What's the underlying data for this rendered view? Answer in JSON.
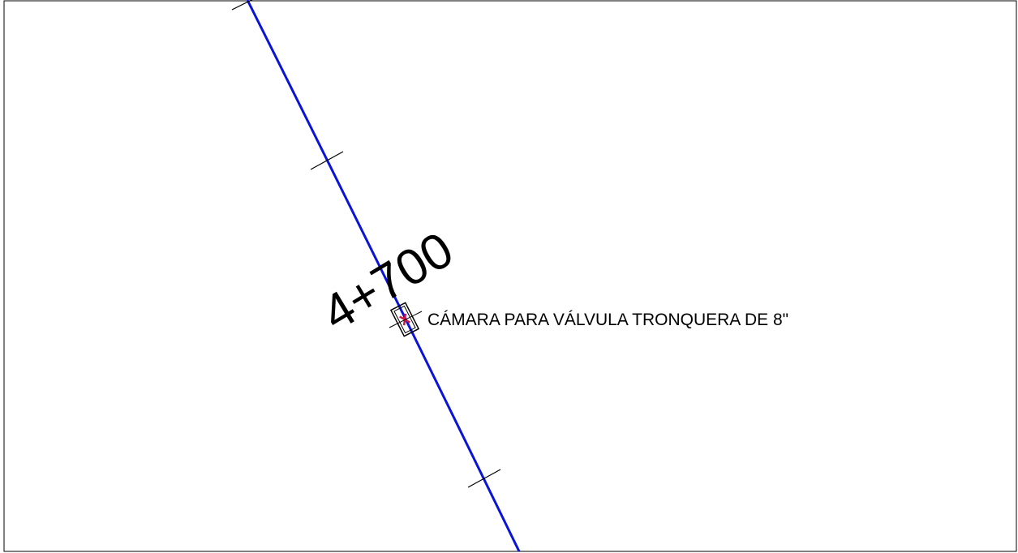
{
  "station_label": "4+700",
  "annotation": "CÁMARA PARA VÁLVULA TRONQUERA DE 8\""
}
